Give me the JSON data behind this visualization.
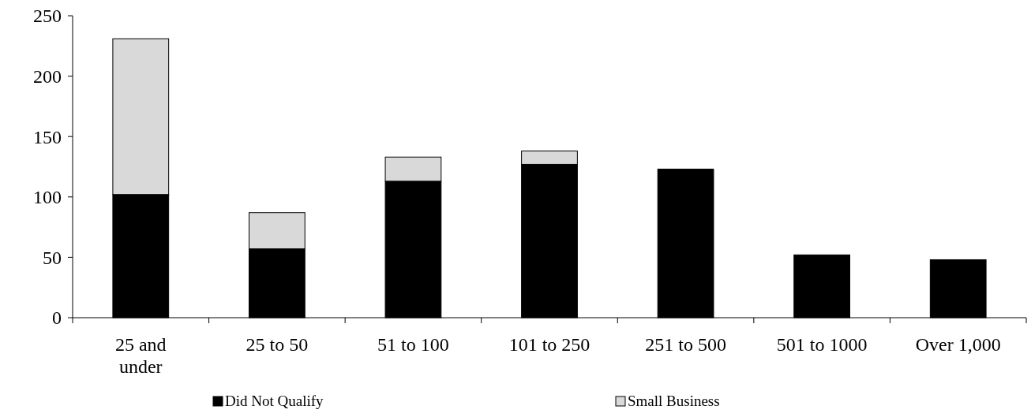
{
  "chart_data": {
    "type": "bar",
    "stacked": true,
    "categories": [
      "25 and under",
      "25 to 50",
      "51 to 100",
      "101 to 250",
      "251 to 500",
      "501 to 1000",
      "Over 1,000"
    ],
    "series": [
      {
        "name": "Did Not Qualify",
        "color": "#000000",
        "values": [
          102,
          57,
          113,
          127,
          123,
          52,
          48
        ]
      },
      {
        "name": "Small Business",
        "color": "#d9d9d9",
        "values": [
          129,
          30,
          20,
          11,
          null,
          null,
          null
        ]
      }
    ],
    "ylim": [
      0,
      250
    ],
    "yticks": [
      0,
      50,
      100,
      150,
      200,
      250
    ],
    "grid": false,
    "legend": "bottom"
  }
}
